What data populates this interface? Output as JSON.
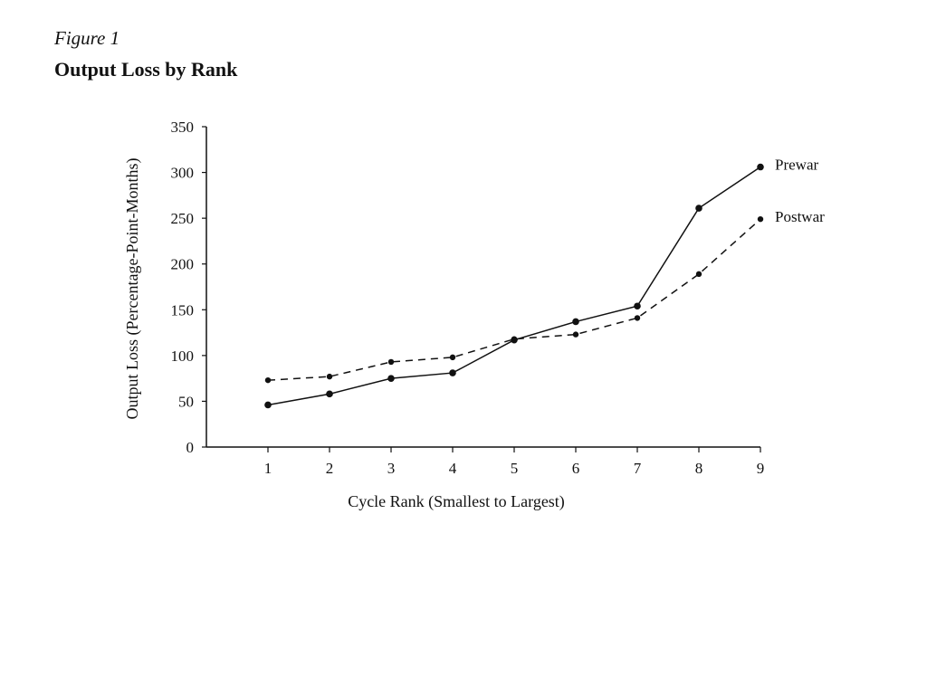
{
  "figure_label": "Figure 1",
  "title": "Output Loss by Rank",
  "chart_data": {
    "type": "line",
    "xlabel": "Cycle Rank (Smallest to Largest)",
    "ylabel": "Output Loss (Percentage-Point-Months)",
    "x": [
      1,
      2,
      3,
      4,
      5,
      6,
      7,
      8,
      9
    ],
    "xlim": [
      0,
      9
    ],
    "ylim": [
      0,
      350
    ],
    "yticks": [
      0,
      50,
      100,
      150,
      200,
      250,
      300,
      350
    ],
    "grid": false,
    "series": [
      {
        "name": "Prewar",
        "style": "solid",
        "color": "#111111",
        "values": [
          46,
          58,
          75,
          81,
          117,
          137,
          154,
          261,
          306
        ]
      },
      {
        "name": "Postwar",
        "style": "dashed",
        "color": "#111111",
        "values": [
          73,
          77,
          93,
          98,
          118,
          123,
          141,
          189,
          249
        ]
      }
    ]
  }
}
